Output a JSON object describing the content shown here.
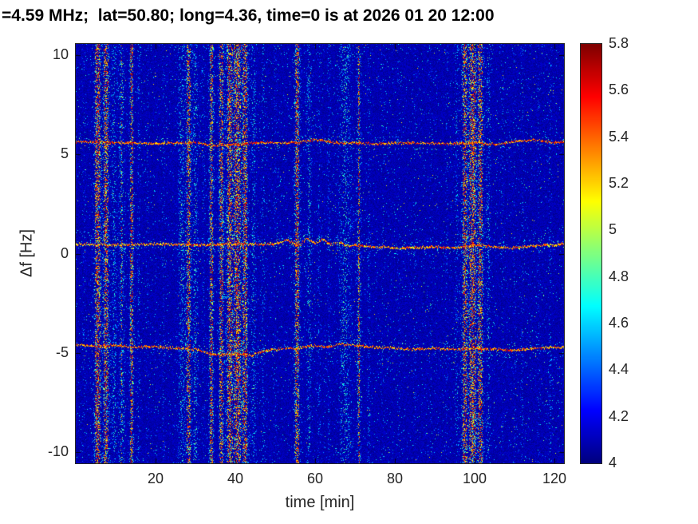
{
  "chart_data": {
    "type": "heatmap",
    "title": "=4.59 MHz;  lat=50.80; long=4.36, time=0 is at 2026 01 20 12:00",
    "xlabel": "time [min]",
    "ylabel": "Δf [Hz]",
    "xlim": [
      0,
      122.4
    ],
    "ylim": [
      -10.55,
      10.55
    ],
    "xticks": [
      20,
      40,
      60,
      80,
      100,
      120
    ],
    "yticks": [
      10,
      5,
      0,
      -5,
      -10
    ],
    "grid": false,
    "legend": false,
    "colorbar": {
      "min": 4,
      "max": 5.8,
      "ticks": [
        4,
        4.2,
        4.4,
        4.6,
        4.8,
        5,
        5.2,
        5.4,
        5.6,
        5.8
      ],
      "colormap": "jet",
      "position": "right"
    },
    "background_value": 4.05,
    "noise_seed": 42,
    "vertical_bands": [
      [
        2,
        0.5,
        0.2
      ],
      [
        5.5,
        0.9,
        1.0
      ],
      [
        7.6,
        0.8,
        0.95
      ],
      [
        9.6,
        0.6,
        0.5
      ],
      [
        11.5,
        0.7,
        0.65
      ],
      [
        14,
        0.5,
        0.9
      ],
      [
        15.8,
        0.4,
        0.35
      ],
      [
        18,
        0.4,
        0.2
      ],
      [
        22,
        0.4,
        0.2
      ],
      [
        26.5,
        0.8,
        0.55
      ],
      [
        28.3,
        0.7,
        0.85
      ],
      [
        30,
        0.6,
        0.6
      ],
      [
        32,
        0.4,
        0.25
      ],
      [
        34,
        0.6,
        0.9
      ],
      [
        36.5,
        0.7,
        0.9
      ],
      [
        38.5,
        0.8,
        1.0
      ],
      [
        40.5,
        1.0,
        1.0
      ],
      [
        42.5,
        0.8,
        0.95
      ],
      [
        44.6,
        0.6,
        0.5
      ],
      [
        47,
        0.5,
        0.35
      ],
      [
        50,
        0.4,
        0.2
      ],
      [
        55.5,
        0.8,
        0.9
      ],
      [
        58.5,
        0.6,
        0.55
      ],
      [
        61,
        0.4,
        0.3
      ],
      [
        63.5,
        0.4,
        0.25
      ],
      [
        67.5,
        1.6,
        0.55
      ],
      [
        71,
        0.5,
        0.8
      ],
      [
        73.5,
        0.4,
        0.3
      ],
      [
        77,
        0.4,
        0.18
      ],
      [
        81,
        0.4,
        0.15
      ],
      [
        85,
        0.4,
        0.18
      ],
      [
        89,
        0.4,
        0.15
      ],
      [
        93,
        0.4,
        0.2
      ],
      [
        95.5,
        0.5,
        0.35
      ],
      [
        97.5,
        0.8,
        0.9
      ],
      [
        99.5,
        1.0,
        1.0
      ],
      [
        101.5,
        0.8,
        0.9
      ],
      [
        103.5,
        0.5,
        0.5
      ],
      [
        107,
        0.4,
        0.2
      ],
      [
        110,
        0.4,
        0.18
      ],
      [
        112,
        0.4,
        0.25
      ],
      [
        116,
        0.4,
        0.18
      ],
      [
        119,
        0.4,
        0.3
      ]
    ],
    "traces": [
      {
        "name": "upper-doppler-trace",
        "value_level": 5.4,
        "fuzz": 0.03,
        "points": [
          [
            0,
            5.65
          ],
          [
            10,
            5.6
          ],
          [
            20,
            5.55
          ],
          [
            30,
            5.6
          ],
          [
            35,
            5.45
          ],
          [
            40,
            5.5
          ],
          [
            45,
            5.6
          ],
          [
            55,
            5.6
          ],
          [
            60,
            5.75
          ],
          [
            65,
            5.6
          ],
          [
            75,
            5.55
          ],
          [
            85,
            5.6
          ],
          [
            95,
            5.55
          ],
          [
            100,
            5.6
          ],
          [
            105,
            5.5
          ],
          [
            110,
            5.65
          ],
          [
            115,
            5.75
          ],
          [
            120,
            5.6
          ],
          [
            122.4,
            5.65
          ]
        ]
      },
      {
        "name": "center-doppler-trace",
        "value_level": 5.3,
        "fuzz": 0.05,
        "points": [
          [
            0,
            0.5
          ],
          [
            10,
            0.45
          ],
          [
            20,
            0.5
          ],
          [
            30,
            0.45
          ],
          [
            40,
            0.5
          ],
          [
            50,
            0.5
          ],
          [
            53,
            0.7
          ],
          [
            56,
            0.4
          ],
          [
            58,
            0.8
          ],
          [
            60,
            0.5
          ],
          [
            62,
            0.75
          ],
          [
            64,
            0.45
          ],
          [
            66,
            0.6
          ],
          [
            68,
            0.4
          ],
          [
            70,
            0.45
          ],
          [
            75,
            0.35
          ],
          [
            80,
            0.3
          ],
          [
            90,
            0.35
          ],
          [
            95,
            0.3
          ],
          [
            100,
            0.45
          ],
          [
            105,
            0.35
          ],
          [
            110,
            0.3
          ],
          [
            115,
            0.4
          ],
          [
            120,
            0.45
          ],
          [
            122.4,
            0.5
          ]
        ]
      },
      {
        "name": "lower-doppler-trace",
        "value_level": 5.35,
        "fuzz": 0.04,
        "points": [
          [
            0,
            -4.55
          ],
          [
            5,
            -4.65
          ],
          [
            10,
            -4.6
          ],
          [
            15,
            -4.7
          ],
          [
            20,
            -4.65
          ],
          [
            25,
            -4.75
          ],
          [
            30,
            -4.8
          ],
          [
            33,
            -5.0
          ],
          [
            36,
            -5.1
          ],
          [
            40,
            -5.05
          ],
          [
            44,
            -5.1
          ],
          [
            47,
            -4.9
          ],
          [
            50,
            -4.8
          ],
          [
            55,
            -4.75
          ],
          [
            60,
            -4.6
          ],
          [
            63,
            -4.7
          ],
          [
            66,
            -4.55
          ],
          [
            70,
            -4.6
          ],
          [
            75,
            -4.7
          ],
          [
            80,
            -4.75
          ],
          [
            85,
            -4.8
          ],
          [
            90,
            -4.75
          ],
          [
            95,
            -4.8
          ],
          [
            100,
            -4.75
          ],
          [
            105,
            -4.8
          ],
          [
            110,
            -4.85
          ],
          [
            115,
            -4.75
          ],
          [
            120,
            -4.7
          ],
          [
            122.4,
            -4.7
          ]
        ]
      }
    ],
    "colors": {
      "axis": "#262626",
      "title": "#000000",
      "background": "#ffffff",
      "field_low": "#00008f",
      "field_high": "#7f0000"
    }
  }
}
